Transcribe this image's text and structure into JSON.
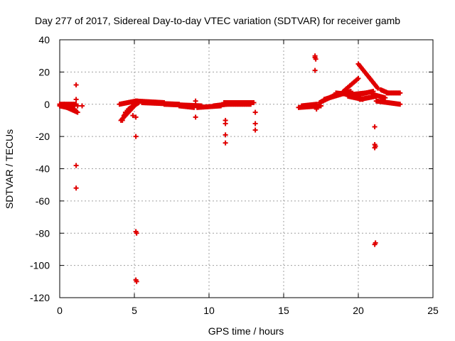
{
  "chart_data": {
    "type": "scatter",
    "title": "Day 277 of 2017, Sidereal Day-to-day VTEC variation (SDTVAR) for receiver gamb",
    "xlabel": "GPS time / hours",
    "ylabel": "SDTVAR / TECUs",
    "xlim": [
      0,
      25
    ],
    "ylim": [
      -120,
      40
    ],
    "xticks": [
      "0",
      "5",
      "10",
      "15",
      "20",
      "25"
    ],
    "yticks": [
      "40",
      "20",
      "0",
      "-20",
      "-40",
      "-60",
      "-80",
      "-100",
      "-120"
    ],
    "grid": true,
    "marker": "+",
    "color": "#e00000",
    "series": [
      {
        "name": "SDTVAR",
        "segments": [
          {
            "x": [
              0.0,
              1.2
            ],
            "y": [
              0,
              -5
            ]
          },
          {
            "x": [
              0.0,
              1.1
            ],
            "y": [
              0,
              0
            ]
          },
          {
            "x": [
              0.0,
              1.0
            ],
            "y": [
              -1,
              -3
            ]
          },
          {
            "x": [
              4.0,
              5.1
            ],
            "y": [
              0,
              2
            ]
          },
          {
            "x": [
              4.1,
              5.0
            ],
            "y": [
              -10,
              -1
            ]
          },
          {
            "x": [
              4.3,
              5.2
            ],
            "y": [
              -7,
              2
            ]
          },
          {
            "x": [
              4.6,
              5.3
            ],
            "y": [
              -3,
              1
            ]
          },
          {
            "x": [
              5.1,
              7.0
            ],
            "y": [
              2,
              1
            ]
          },
          {
            "x": [
              5.5,
              8.0
            ],
            "y": [
              1,
              0
            ]
          },
          {
            "x": [
              7.0,
              9.5
            ],
            "y": [
              0,
              -1
            ]
          },
          {
            "x": [
              8.0,
              9.0
            ],
            "y": [
              -1,
              -2
            ]
          },
          {
            "x": [
              9.2,
              10.8
            ],
            "y": [
              -2,
              -1
            ]
          },
          {
            "x": [
              10.3,
              11.2
            ],
            "y": [
              -1,
              0
            ]
          },
          {
            "x": [
              11.0,
              13.0
            ],
            "y": [
              1,
              1
            ]
          },
          {
            "x": [
              11.2,
              12.8
            ],
            "y": [
              0,
              0
            ]
          },
          {
            "x": [
              16.0,
              17.5
            ],
            "y": [
              -2,
              -1
            ]
          },
          {
            "x": [
              16.2,
              17.2
            ],
            "y": [
              -1,
              0
            ]
          },
          {
            "x": [
              17.4,
              18.5
            ],
            "y": [
              1,
              6
            ]
          },
          {
            "x": [
              17.7,
              19.5
            ],
            "y": [
              3,
              8
            ]
          },
          {
            "x": [
              18.5,
              19.5
            ],
            "y": [
              7,
              6
            ]
          },
          {
            "x": [
              19.0,
              20.0
            ],
            "y": [
              8,
              16
            ]
          },
          {
            "x": [
              19.3,
              20.3
            ],
            "y": [
              5,
              3
            ]
          },
          {
            "x": [
              19.5,
              20.5
            ],
            "y": [
              6,
              7
            ]
          },
          {
            "x": [
              20.0,
              21.3
            ],
            "y": [
              25,
              10
            ]
          },
          {
            "x": [
              20.0,
              21.0
            ],
            "y": [
              6,
              8
            ]
          },
          {
            "x": [
              20.1,
              21.2
            ],
            "y": [
              3,
              5
            ]
          },
          {
            "x": [
              21.0,
              21.8
            ],
            "y": [
              6,
              4
            ]
          },
          {
            "x": [
              21.2,
              22.8
            ],
            "y": [
              2,
              0
            ]
          },
          {
            "x": [
              21.5,
              22.0
            ],
            "y": [
              9,
              7
            ]
          },
          {
            "x": [
              21.9,
              22.8
            ],
            "y": [
              7,
              7
            ]
          }
        ],
        "points": [
          {
            "x": 0.3,
            "y": 0
          },
          {
            "x": 0.6,
            "y": -2
          },
          {
            "x": 1.1,
            "y": 12
          },
          {
            "x": 1.1,
            "y": 3
          },
          {
            "x": 1.2,
            "y": -1
          },
          {
            "x": 1.5,
            "y": -1
          },
          {
            "x": 1.1,
            "y": -38
          },
          {
            "x": 1.1,
            "y": -52
          },
          {
            "x": 4.2,
            "y": -10
          },
          {
            "x": 4.4,
            "y": -5
          },
          {
            "x": 4.9,
            "y": -7
          },
          {
            "x": 5.1,
            "y": -8
          },
          {
            "x": 5.1,
            "y": -20
          },
          {
            "x": 5.1,
            "y": -79
          },
          {
            "x": 5.15,
            "y": -80
          },
          {
            "x": 5.1,
            "y": -109
          },
          {
            "x": 5.15,
            "y": -110
          },
          {
            "x": 9.1,
            "y": -8
          },
          {
            "x": 9.1,
            "y": 2
          },
          {
            "x": 11.1,
            "y": -10
          },
          {
            "x": 11.1,
            "y": -12
          },
          {
            "x": 11.1,
            "y": -19
          },
          {
            "x": 11.1,
            "y": -24
          },
          {
            "x": 13.1,
            "y": -5
          },
          {
            "x": 13.1,
            "y": -12
          },
          {
            "x": 13.1,
            "y": -16
          },
          {
            "x": 17.1,
            "y": 29
          },
          {
            "x": 17.1,
            "y": 30
          },
          {
            "x": 17.15,
            "y": 28
          },
          {
            "x": 17.1,
            "y": 21
          },
          {
            "x": 17.2,
            "y": -3
          },
          {
            "x": 21.1,
            "y": -14
          },
          {
            "x": 21.1,
            "y": -25
          },
          {
            "x": 21.1,
            "y": -27
          },
          {
            "x": 21.15,
            "y": -26
          },
          {
            "x": 21.1,
            "y": -87
          },
          {
            "x": 21.15,
            "y": -86
          }
        ]
      }
    ]
  }
}
